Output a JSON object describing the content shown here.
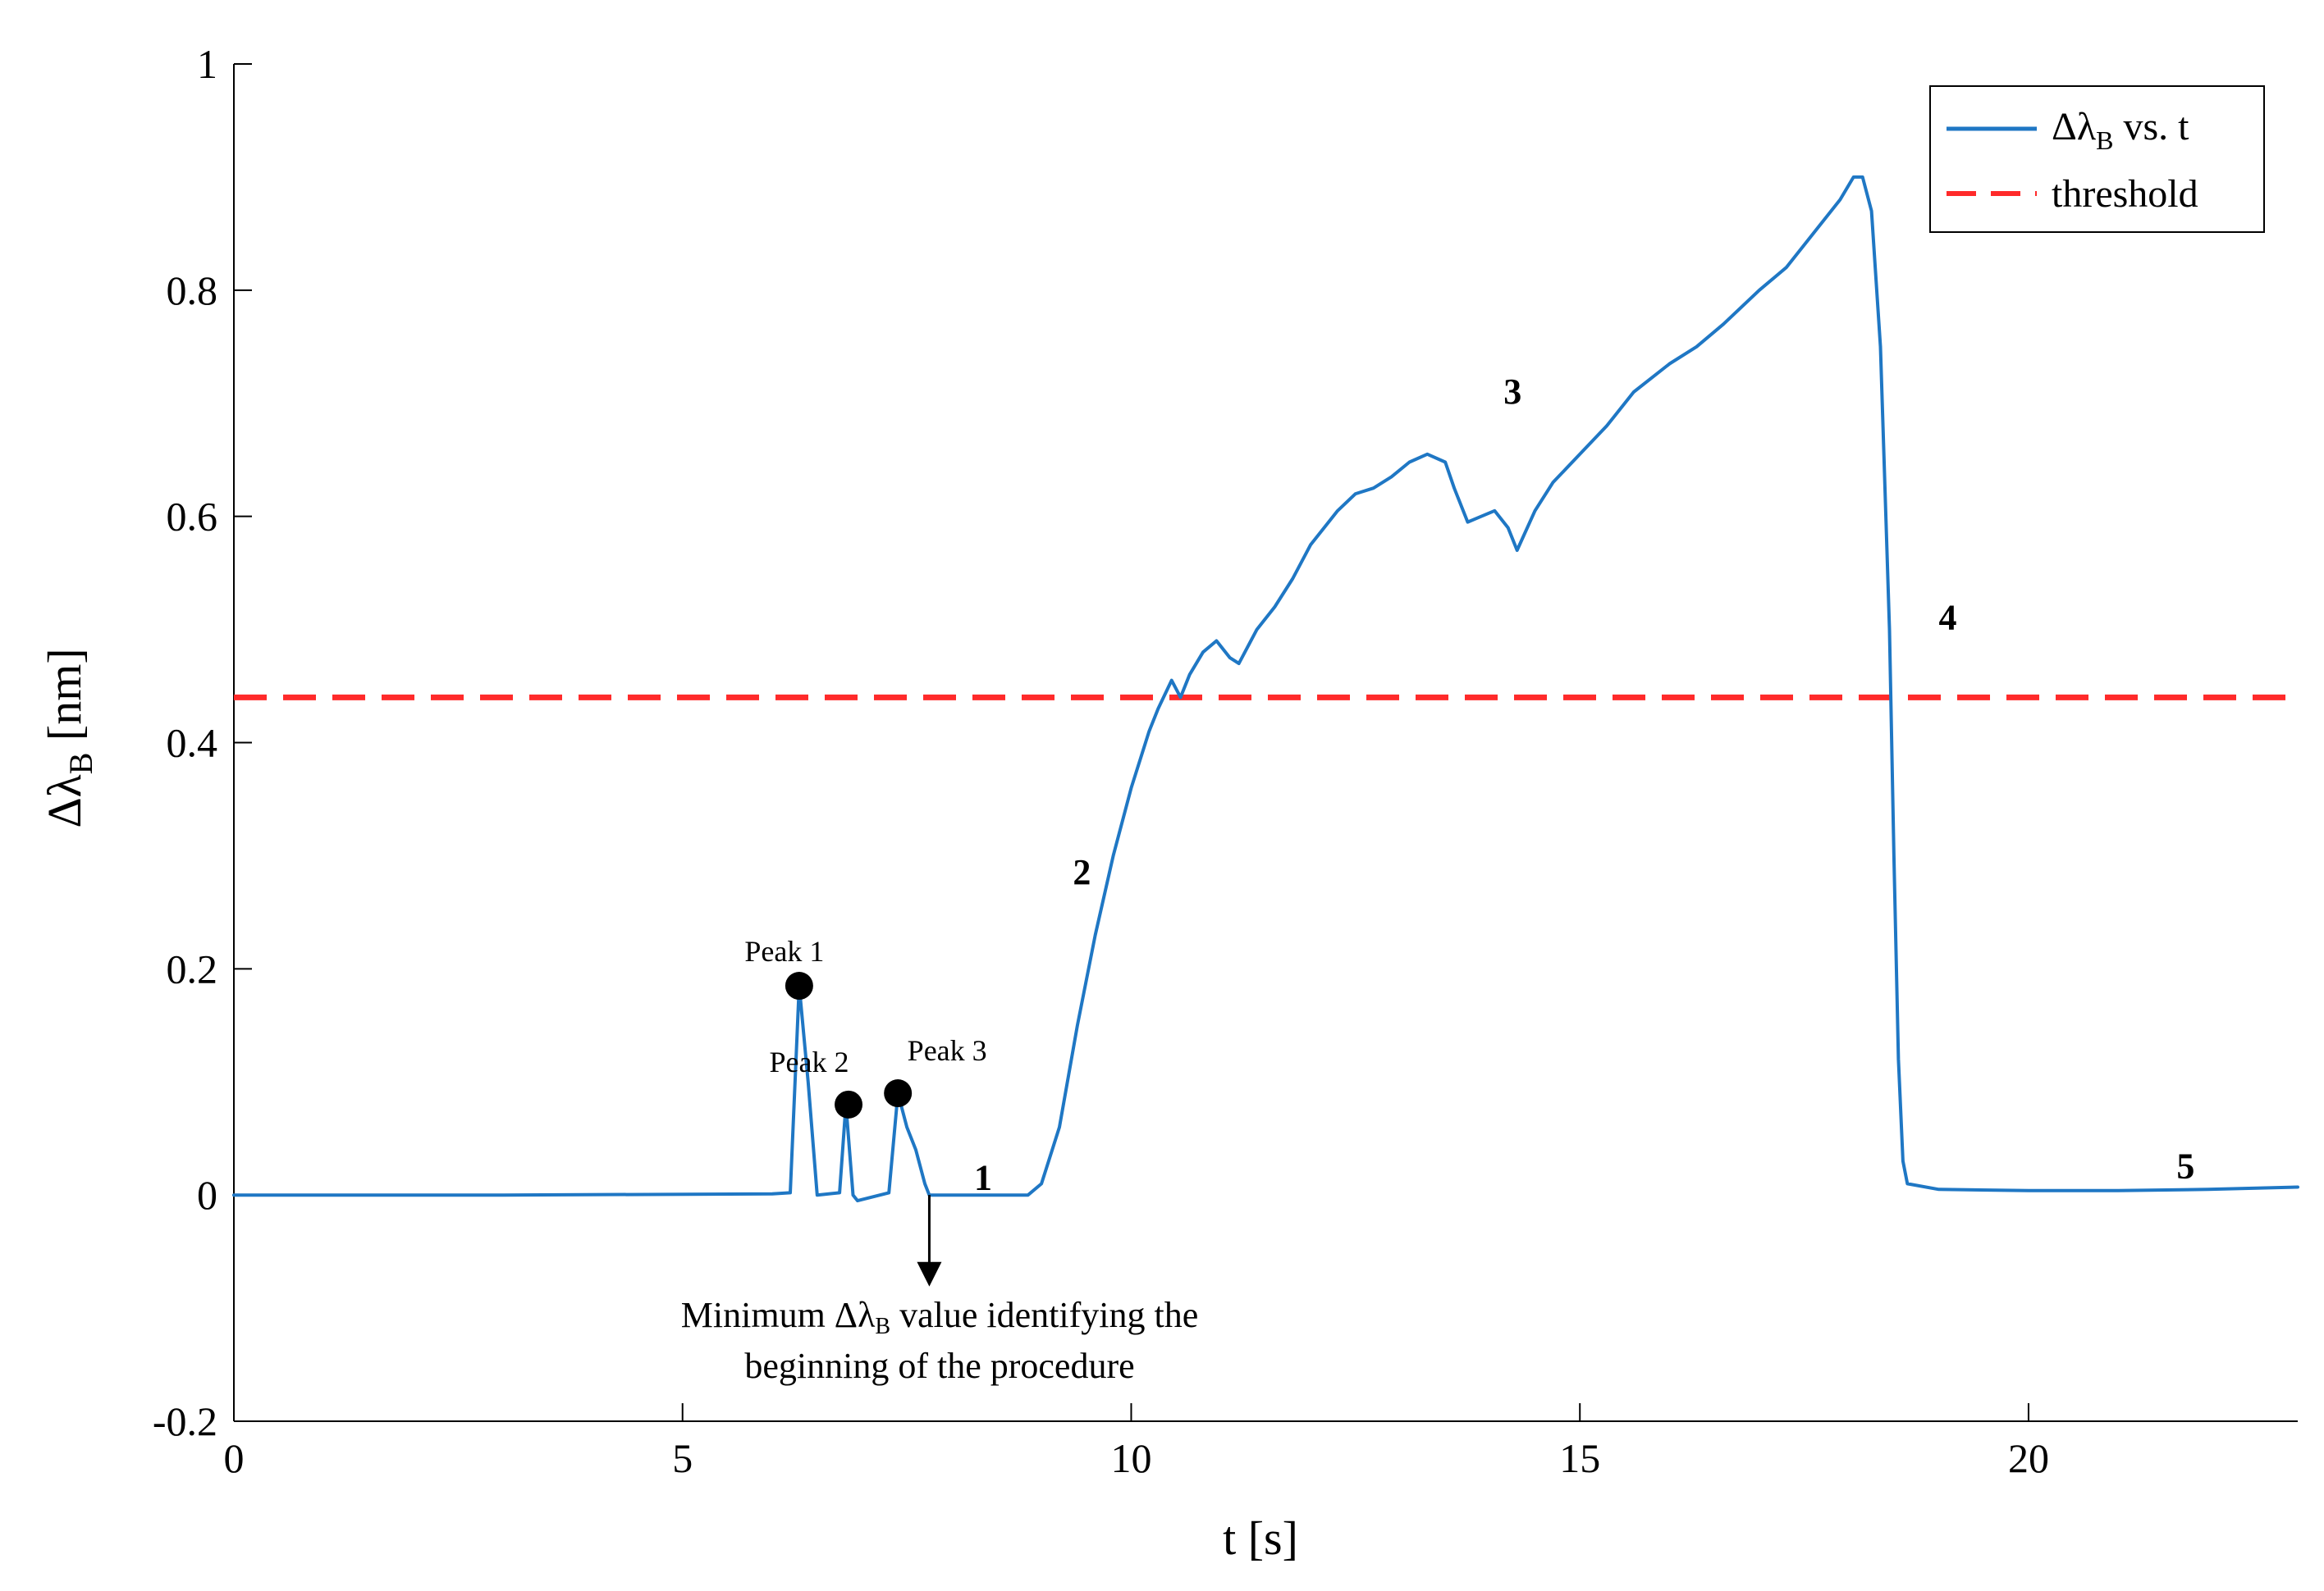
{
  "chart_data": {
    "type": "line",
    "xlabel": "t [s]",
    "ylabel_main": "Δλ",
    "ylabel_sub": "B",
    "ylabel_unit": "[nm]",
    "xlim": [
      0,
      23
    ],
    "ylim": [
      -0.2,
      1
    ],
    "xticks": [
      0,
      5,
      10,
      15,
      20
    ],
    "xtick_labels": [
      "0",
      "5",
      "10",
      "15",
      "20"
    ],
    "yticks": [
      -0.2,
      0,
      0.2,
      0.4,
      0.6,
      0.8,
      1
    ],
    "ytick_labels": [
      "-0.2",
      "0",
      "0.2",
      "0.4",
      "0.6",
      "0.8",
      "1"
    ],
    "grid": false,
    "legend_position": "top-right",
    "legend": {
      "series_main": "Δλ",
      "series_sub": "B",
      "series_rest": " vs. t",
      "threshold": "threshold"
    },
    "series": [
      {
        "color": "#1f77c4",
        "x": [
          0,
          3,
          6,
          6.2,
          6.3,
          6.4,
          6.5,
          6.75,
          6.82,
          6.9,
          6.95,
          7.3,
          7.4,
          7.5,
          7.6,
          7.7,
          7.75,
          8.5,
          8.85,
          9.0,
          9.2,
          9.4,
          9.6,
          9.8,
          10.0,
          10.2,
          10.3,
          10.45,
          10.55,
          10.65,
          10.8,
          10.95,
          11.1,
          11.2,
          11.4,
          11.6,
          11.8,
          12.0,
          12.3,
          12.5,
          12.7,
          12.9,
          13.1,
          13.3,
          13.5,
          13.6,
          13.75,
          13.9,
          14.05,
          14.2,
          14.3,
          14.5,
          14.7,
          15.0,
          15.3,
          15.6,
          16.0,
          16.3,
          16.6,
          17.0,
          17.3,
          17.6,
          17.9,
          18.05,
          18.15,
          18.25,
          18.35,
          18.45,
          18.5,
          18.55,
          18.6,
          18.65,
          19.0,
          20.0,
          21.0,
          22.0,
          22.5,
          23.0
        ],
        "y": [
          0.0,
          0.0,
          0.001,
          0.002,
          0.185,
          0.1,
          0.0,
          0.002,
          0.08,
          0.0,
          -0.005,
          0.002,
          0.09,
          0.06,
          0.04,
          0.01,
          0.0,
          0.0,
          0.0,
          0.01,
          0.06,
          0.15,
          0.23,
          0.3,
          0.36,
          0.41,
          0.43,
          0.455,
          0.44,
          0.46,
          0.48,
          0.49,
          0.475,
          0.47,
          0.5,
          0.52,
          0.545,
          0.575,
          0.605,
          0.62,
          0.625,
          0.635,
          0.648,
          0.655,
          0.648,
          0.625,
          0.595,
          0.6,
          0.605,
          0.59,
          0.57,
          0.605,
          0.63,
          0.655,
          0.68,
          0.71,
          0.735,
          0.75,
          0.77,
          0.8,
          0.82,
          0.85,
          0.88,
          0.9,
          0.9,
          0.87,
          0.75,
          0.5,
          0.3,
          0.12,
          0.03,
          0.01,
          0.005,
          0.004,
          0.004,
          0.005,
          0.006,
          0.007
        ]
      },
      {
        "color": "#ff2a2a",
        "dashed": true,
        "x": [
          0,
          23
        ],
        "y": [
          0.44,
          0.44
        ]
      }
    ],
    "peaks": [
      {
        "label": "Peak 1",
        "x": 6.3,
        "y": 0.185
      },
      {
        "label": "Peak 2",
        "x": 6.85,
        "y": 0.08
      },
      {
        "label": "Peak 3",
        "x": 7.4,
        "y": 0.09
      }
    ],
    "phase_labels": [
      {
        "text": "1",
        "x": 8.35,
        "y": 0.005
      },
      {
        "text": "2",
        "x": 9.45,
        "y": 0.275
      },
      {
        "text": "3",
        "x": 14.25,
        "y": 0.7
      },
      {
        "text": "4",
        "x": 19.1,
        "y": 0.5
      },
      {
        "text": "5",
        "x": 21.75,
        "y": 0.015
      }
    ],
    "annotation": {
      "line1_pre": "Minimum Δλ",
      "line1_sub": "B",
      "line1_post": "  value identifying the",
      "line2": "beginning of the procedure",
      "arrow_x": 7.75,
      "arrow_y_start": 0.0,
      "arrow_y_end": -0.07
    }
  }
}
